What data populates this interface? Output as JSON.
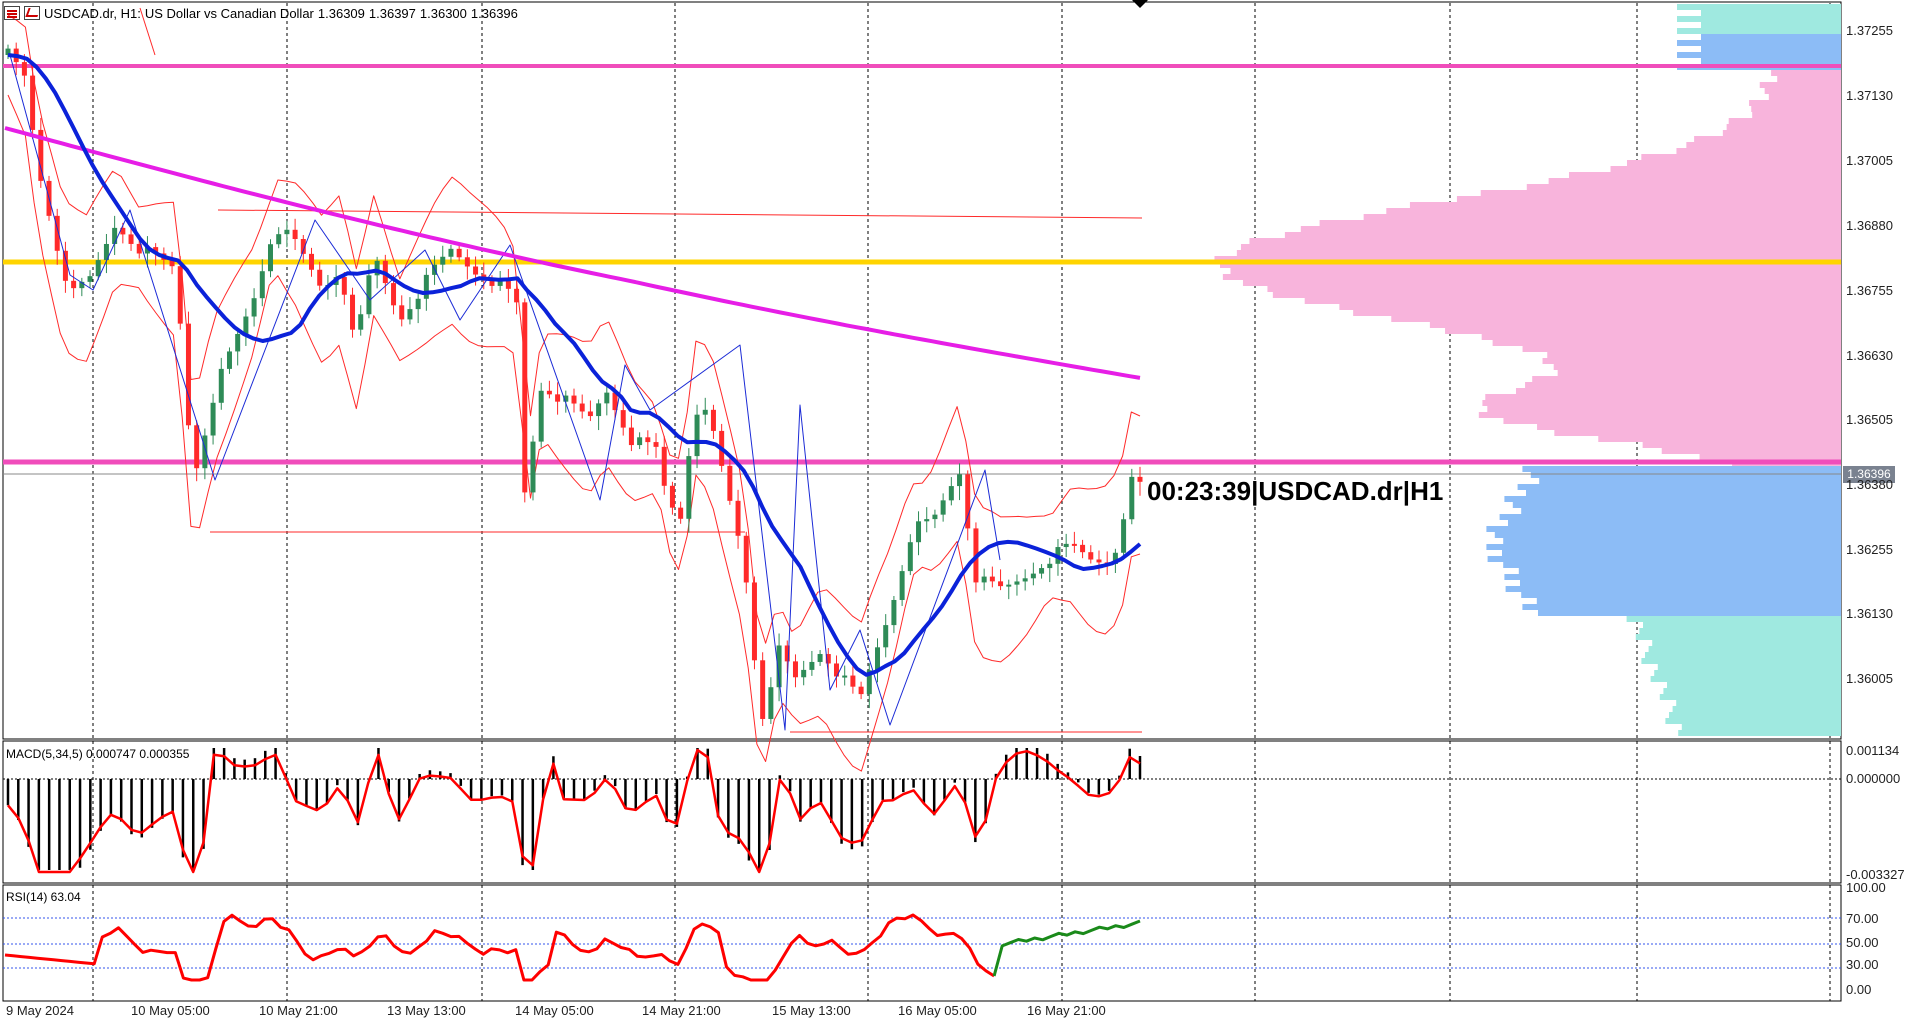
{
  "header": {
    "symbol": "USDCAD.dr, H1:",
    "description": "US Dollar vs Canadian Dollar",
    "open": "1.36309",
    "high": "1.36397",
    "low": "1.36300",
    "close": "1.36396"
  },
  "timer_label": "00:23:39|USDCAD.dr|H1",
  "current_price_tag": "1.36396",
  "price_axis": [
    "1.37255",
    "1.37130",
    "1.37005",
    "1.36880",
    "1.36755",
    "1.36630",
    "1.36505",
    "1.36380",
    "1.36255",
    "1.36130",
    "1.36005"
  ],
  "time_axis": [
    "9 May 2024",
    "10 May 05:00",
    "10 May 21:00",
    "13 May 13:00",
    "14 May 05:00",
    "14 May 21:00",
    "15 May 13:00",
    "16 May 05:00",
    "16 May 21:00"
  ],
  "macd": {
    "label": "MACD(5,34,5) 0.000747 0.000355",
    "axis": [
      "0.001134",
      "0.000000",
      "-0.003327"
    ]
  },
  "rsi": {
    "label": "RSI(14) 63.04",
    "axis": [
      "100.00",
      "70.00",
      "50.00",
      "30.00",
      "0.00"
    ]
  },
  "colors": {
    "bull_candle": "#2e8b57",
    "bear_candle": "#ff2a2a",
    "ma_fast": "#0b22d9",
    "ma_slow": "#e61ee6",
    "level_magenta": "#f04dbb",
    "level_yellow": "#ffd400",
    "profile_upper": "#f8b4dc",
    "profile_mid": "#8cbcf6",
    "profile_lower": "#9fe9e0",
    "macd_signal": "#ff0000",
    "rsi_line": "#ff0000",
    "rsi_line_recent": "#1a8a1a"
  }
}
